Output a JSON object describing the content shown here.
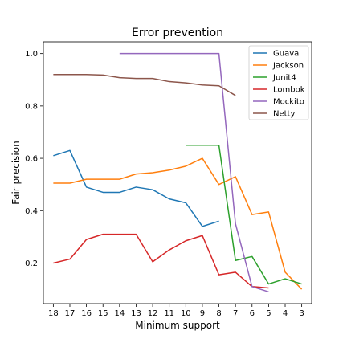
{
  "chart_data": {
    "type": "line",
    "title": "Error prevention",
    "xlabel": "Minimum support",
    "ylabel": "Fair precision",
    "x": [
      18,
      17,
      16,
      15,
      14,
      13,
      12,
      11,
      10,
      9,
      8,
      7,
      6,
      5,
      4,
      3
    ],
    "xlim": [
      18.6,
      2.4
    ],
    "ylim": [
      0.045,
      1.045
    ],
    "yticks": [
      0.2,
      0.4,
      0.6,
      0.8,
      1.0
    ],
    "ytick_labels": [
      "0.2",
      "0.4",
      "0.6",
      "0.8",
      "1.0"
    ],
    "legend_position": "top-right",
    "series": [
      {
        "name": "Guava",
        "color": "#1f77b4",
        "values": [
          0.61,
          0.63,
          0.49,
          0.47,
          0.47,
          0.49,
          0.48,
          0.445,
          0.43,
          0.34,
          0.36,
          null,
          null,
          null,
          null,
          null
        ]
      },
      {
        "name": "Jackson",
        "color": "#ff7f0e",
        "values": [
          0.505,
          0.505,
          0.52,
          0.52,
          0.52,
          0.54,
          0.545,
          0.555,
          0.57,
          0.6,
          0.5,
          0.53,
          0.385,
          0.395,
          0.165,
          0.1
        ]
      },
      {
        "name": "Junit4",
        "color": "#2ca02c",
        "values": [
          null,
          null,
          null,
          null,
          null,
          null,
          null,
          null,
          0.65,
          0.65,
          0.65,
          0.21,
          0.225,
          0.12,
          0.14,
          0.12
        ]
      },
      {
        "name": "Lombok",
        "color": "#d62728",
        "values": [
          0.2,
          0.215,
          0.29,
          0.31,
          0.31,
          0.31,
          0.205,
          0.25,
          0.285,
          0.305,
          0.155,
          0.165,
          0.11,
          0.105,
          null,
          null
        ]
      },
      {
        "name": "Mockito",
        "color": "#9467bd",
        "values": [
          null,
          null,
          null,
          null,
          1.0,
          1.0,
          1.0,
          1.0,
          1.0,
          1.0,
          1.0,
          0.35,
          0.11,
          0.09,
          null,
          null
        ]
      },
      {
        "name": "Netty",
        "color": "#8c564b",
        "values": [
          0.92,
          0.92,
          0.92,
          0.918,
          0.908,
          0.905,
          0.905,
          0.893,
          0.888,
          0.88,
          0.877,
          0.84,
          null,
          null,
          null,
          null
        ]
      }
    ]
  }
}
